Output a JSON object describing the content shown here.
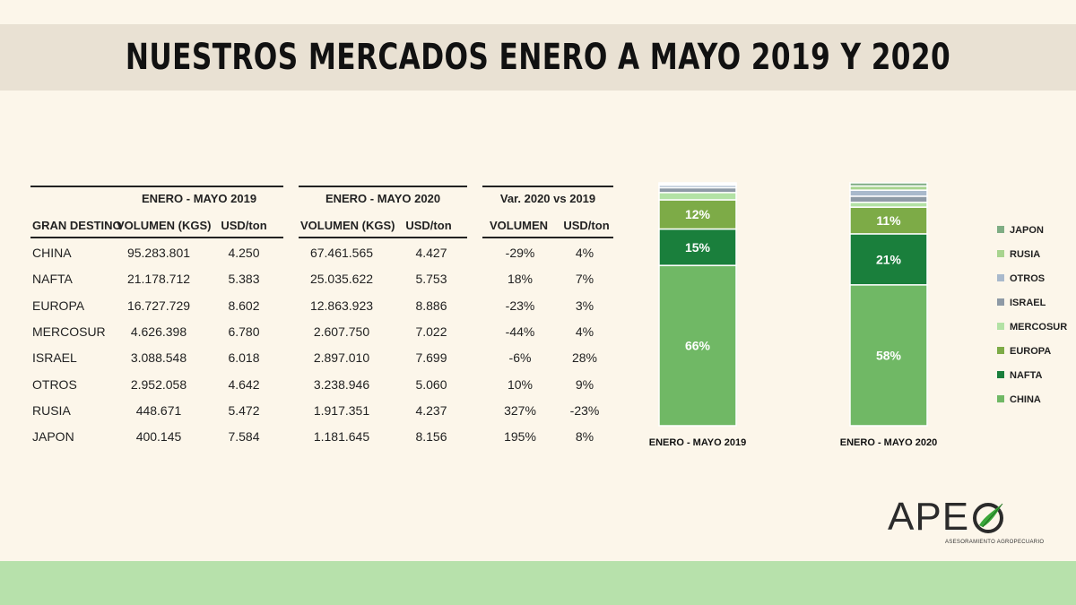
{
  "title": "NUESTROS MERCADOS ENERO A MAYO 2019 Y 2020",
  "table": {
    "group_headers": [
      "ENERO - MAYO 2019",
      "ENERO - MAYO 2020",
      "Var. 2020 vs 2019"
    ],
    "col_headers": [
      "GRAN DESTINO",
      "VOLUMEN (KGS)",
      "USD/ton",
      "VOLUMEN (KGS)",
      "USD/ton",
      "VOLUMEN",
      "USD/ton"
    ],
    "rows": [
      [
        "CHINA",
        "95.283.801",
        "4.250",
        "67.461.565",
        "4.427",
        "-29%",
        "4%"
      ],
      [
        "NAFTA",
        "21.178.712",
        "5.383",
        "25.035.622",
        "5.753",
        "18%",
        "7%"
      ],
      [
        "EUROPA",
        "16.727.729",
        "8.602",
        "12.863.923",
        "8.886",
        "-23%",
        "3%"
      ],
      [
        "MERCOSUR",
        "4.626.398",
        "6.780",
        "2.607.750",
        "7.022",
        "-44%",
        "4%"
      ],
      [
        "ISRAEL",
        "3.088.548",
        "6.018",
        "2.897.010",
        "7.699",
        "-6%",
        "28%"
      ],
      [
        "OTROS",
        "2.952.058",
        "4.642",
        "3.238.946",
        "5.060",
        "10%",
        "9%"
      ],
      [
        "RUSIA",
        "448.671",
        "5.472",
        "1.917.351",
        "4.237",
        "327%",
        "-23%"
      ],
      [
        "JAPON",
        "400.145",
        "7.584",
        "1.181.645",
        "8.156",
        "195%",
        "8%"
      ]
    ]
  },
  "chart_data": {
    "type": "bar",
    "stacked": true,
    "normalized": true,
    "categories": [
      "ENERO - MAYO 2019",
      "ENERO - MAYO 2020"
    ],
    "series": [
      {
        "name": "CHINA",
        "values": [
          66,
          58
        ],
        "color": "#70b865"
      },
      {
        "name": "NAFTA",
        "values": [
          15,
          21
        ],
        "color": "#1a7f3c"
      },
      {
        "name": "EUROPA",
        "values": [
          12,
          11
        ],
        "color": "#7dab47"
      },
      {
        "name": "MERCOSUR",
        "values": [
          3,
          2
        ],
        "color": "#b3e2a5"
      },
      {
        "name": "ISRAEL",
        "values": [
          2,
          2.5
        ],
        "color": "#8e9aa6"
      },
      {
        "name": "OTROS",
        "values": [
          1,
          2.5
        ],
        "color": "#a9b9cc"
      },
      {
        "name": "RUSIA",
        "values": [
          0.5,
          1.7
        ],
        "color": "#a8d48f"
      },
      {
        "name": "JAPON",
        "values": [
          0.5,
          1.3
        ],
        "color": "#7fad84"
      }
    ],
    "data_labels": [
      [
        "66%",
        "15%",
        "12%"
      ],
      [
        "58%",
        "21%",
        "11%"
      ]
    ],
    "legend_position": "right",
    "ylim": [
      0,
      100
    ]
  },
  "logo": {
    "text": "APE",
    "subtitle": "ASESORAMIENTO AGROPECUARIO"
  }
}
